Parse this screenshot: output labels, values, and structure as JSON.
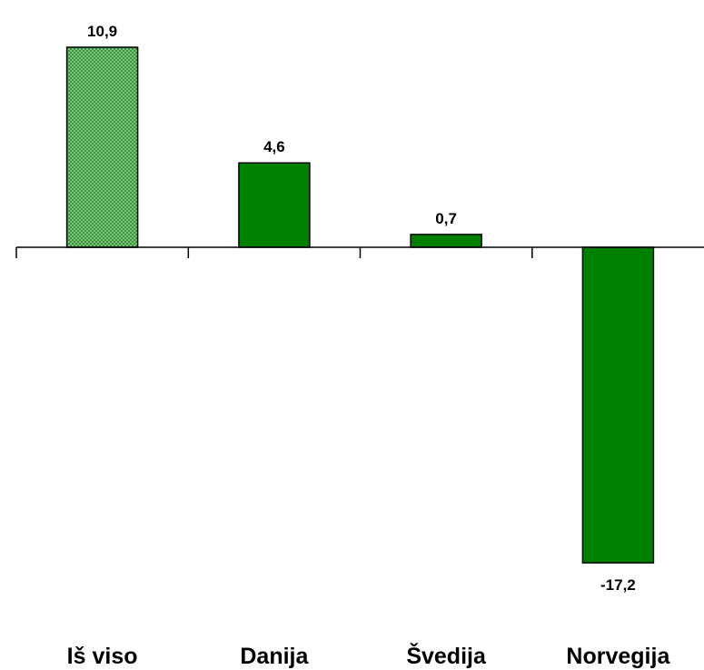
{
  "chart_data": {
    "type": "bar",
    "categories": [
      "Iš viso",
      "Danija",
      "Švedija",
      "Norvegija"
    ],
    "values": [
      10.9,
      4.6,
      0.7,
      -17.2
    ],
    "data_labels": [
      "10,9",
      "4,6",
      "0,7",
      "-17,2"
    ],
    "title": "",
    "xlabel": "",
    "ylabel": "",
    "ylim": [
      -17.2,
      10.9
    ],
    "grid": false,
    "legend": "none",
    "colors": {
      "bar_fill": "#008000",
      "bar_stroke": "#000000",
      "highlight_fill": "#8fd18f",
      "highlight_hatch": "#2e8b2e",
      "axis": "#000000"
    },
    "highlight_category": "Iš viso"
  }
}
